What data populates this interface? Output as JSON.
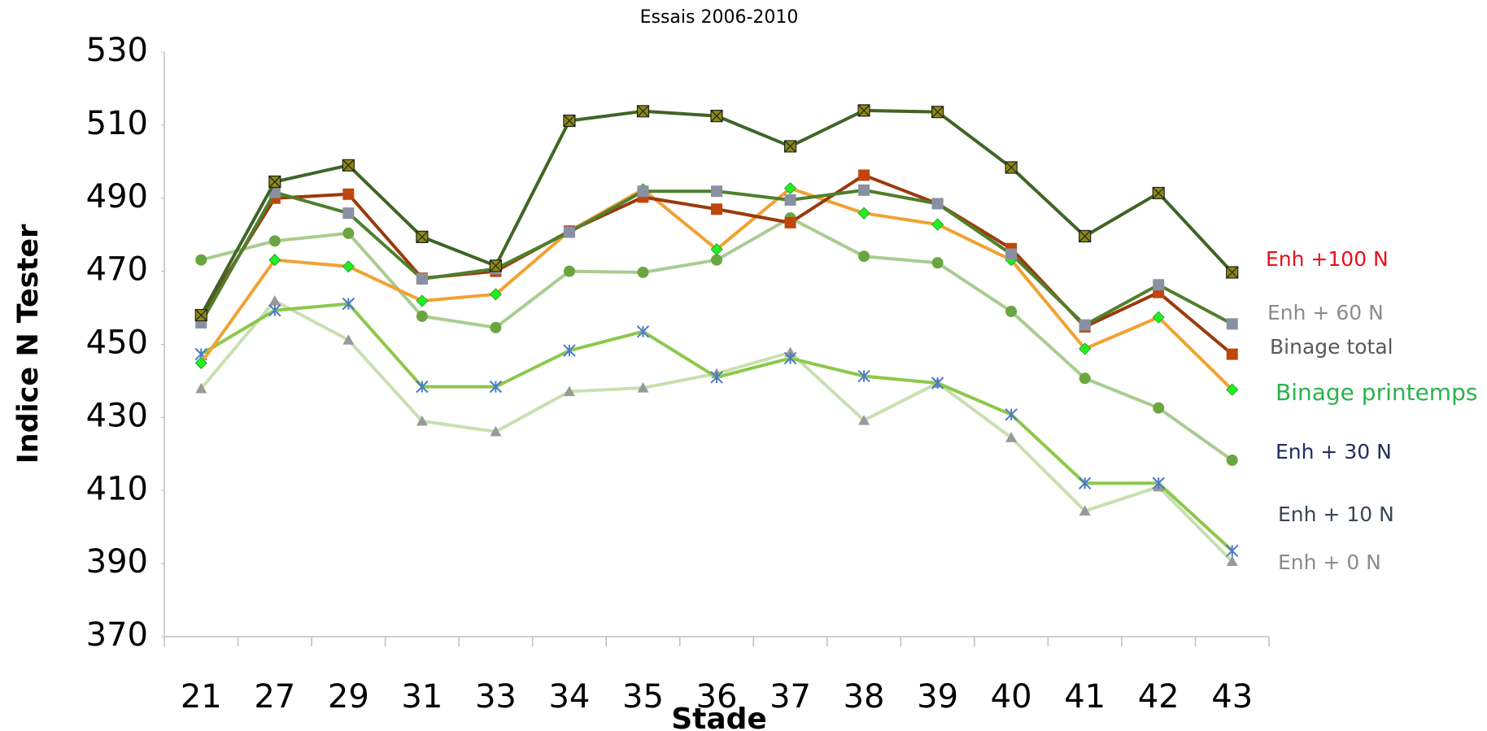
{
  "chart_data": {
    "type": "line",
    "title": "Essais 2006-2010",
    "x_label": "Stade",
    "y_label": "Indice N Tester",
    "categories": [
      "21",
      "27",
      "29",
      "31",
      "33",
      "34",
      "35",
      "36",
      "37",
      "38",
      "39",
      "40",
      "41",
      "42",
      "43"
    ],
    "ylim": [
      370,
      530
    ],
    "yticks": [
      370,
      390,
      410,
      430,
      450,
      470,
      490,
      510,
      530
    ],
    "grid": false,
    "series": [
      {
        "name": "Enh +100 N",
        "label_color": "#e8101a",
        "color": "#3f6526",
        "marker": "square-x",
        "marker_color": "#8a8a10",
        "values": [
          458,
          494.5,
          499,
          479.4,
          471.5,
          511.2,
          513.8,
          512.5,
          504.2,
          514,
          513.6,
          498.4,
          479.6,
          491.4,
          469.7
        ]
      },
      {
        "name": "Enh + 60 N",
        "label_color": "#8c8c8c",
        "color": "#4f7f2c",
        "marker": "square",
        "marker_color": "#8a90a4",
        "values": [
          455.9,
          491.6,
          485.9,
          467.9,
          470.7,
          480.7,
          491.9,
          491.9,
          489.5,
          492.2,
          488.5,
          474.7,
          455.3,
          466.3,
          455.6
        ]
      },
      {
        "name": "Binage total",
        "label_color": "#595959",
        "color": "#9a3a0c",
        "marker": "square",
        "marker_color": "#c0470c",
        "values": [
          457.7,
          490,
          491.1,
          468.1,
          470,
          481,
          490.3,
          487,
          483.3,
          496.3,
          488.5,
          476.2,
          454.8,
          464.2,
          447.3
        ]
      },
      {
        "name": "Binage printemps",
        "label_color": "#2bb24c",
        "color": "#f0a232",
        "marker": "diamond",
        "marker_color": "#22ee22",
        "values": [
          444.9,
          473.1,
          471.3,
          461.9,
          463.7,
          481,
          492.4,
          476,
          492.7,
          485.9,
          482.8,
          473.1,
          448.8,
          457.4,
          437.6
        ]
      },
      {
        "name": "Enh + 30 N",
        "label_color": "#1f2f60",
        "color": "#a9cc90",
        "marker": "circle",
        "marker_color": "#6aa640",
        "values": [
          473.1,
          478.3,
          480.4,
          457.7,
          454.6,
          470,
          469.7,
          473.1,
          484.6,
          474.1,
          472.3,
          459,
          440.7,
          432.6,
          418.3
        ]
      },
      {
        "name": "Enh + 10 N",
        "label_color": "#3a4656",
        "color": "#8cc84a",
        "marker": "star",
        "marker_color": "#4a7ac8",
        "values": [
          447.3,
          459.3,
          461.1,
          438.4,
          438.4,
          448.3,
          453.5,
          441,
          446.2,
          441.3,
          439.4,
          430.8,
          412,
          412,
          393.5
        ]
      },
      {
        "name": "Enh + 0 N",
        "label_color": "#8c8c8c",
        "color": "#c8e0b0",
        "marker": "triangle",
        "marker_color": "#999999",
        "values": [
          437.9,
          461.9,
          451.2,
          429,
          426.1,
          437.1,
          438.1,
          442,
          447.8,
          429.2,
          439.4,
          424.5,
          404.4,
          411,
          390.6
        ]
      }
    ]
  }
}
